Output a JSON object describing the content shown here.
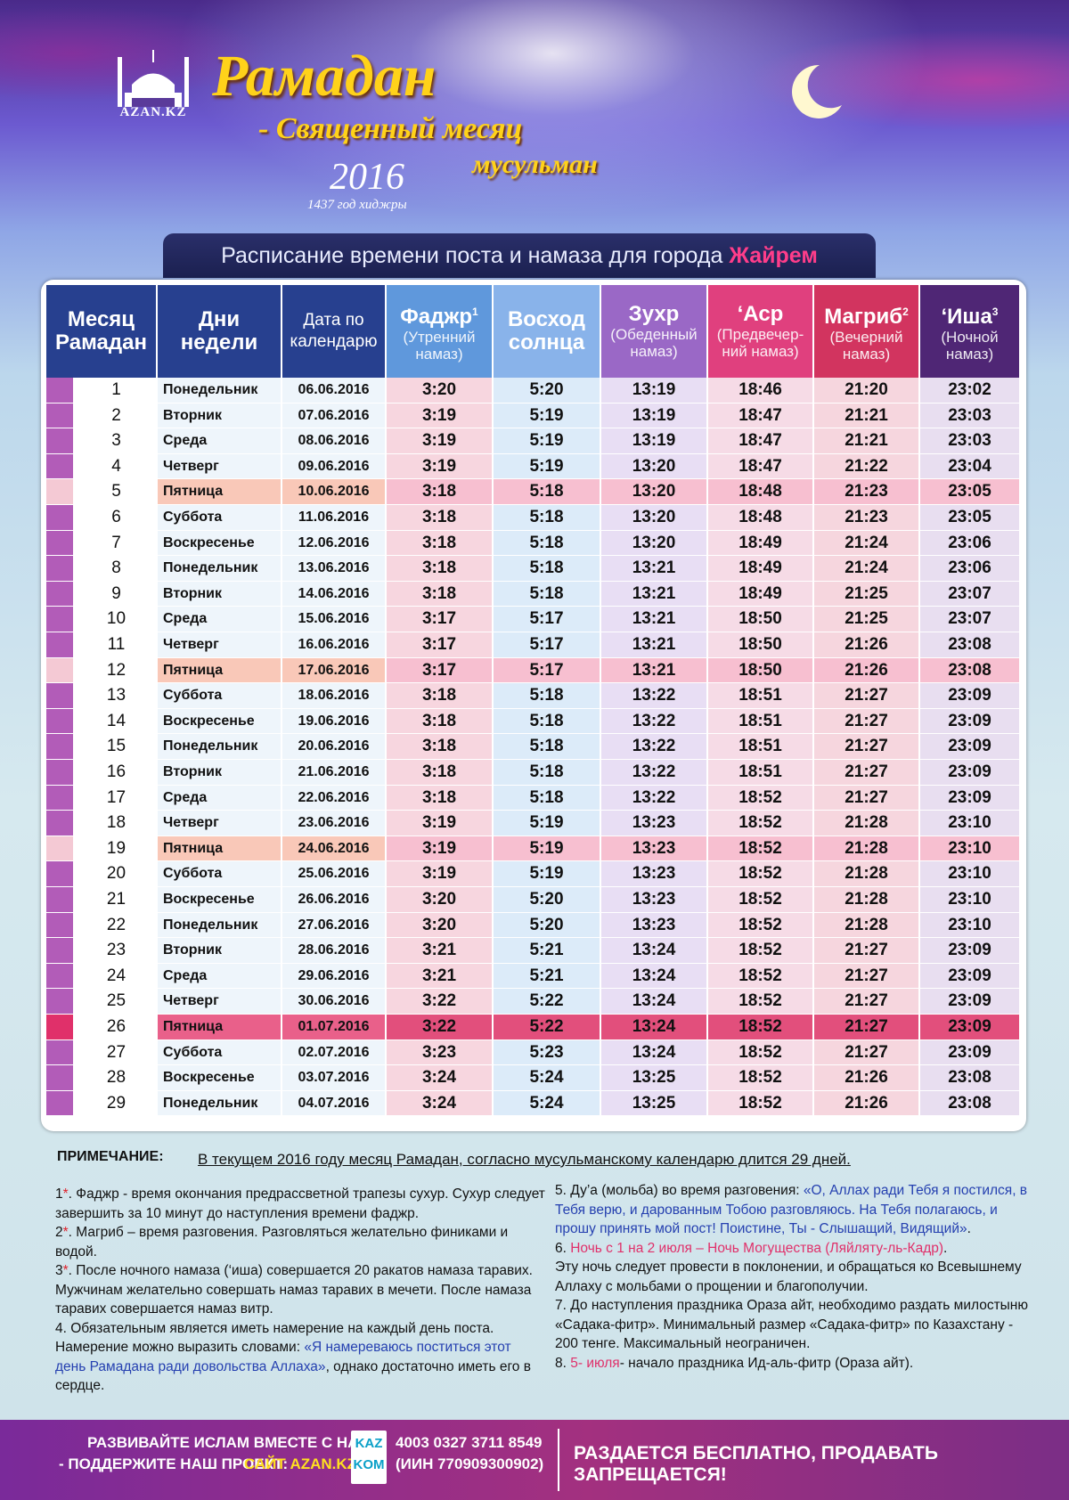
{
  "header": {
    "logo": "AZAN.KZ",
    "title": "Рамадан",
    "subtitle": [
      "- Священный месяц",
      "мусульман"
    ],
    "year": "2016",
    "hijri": "1437 год хиджры"
  },
  "banner": {
    "text": "Расписание времени поста и намаза  для города ",
    "city": "Жайрем"
  },
  "table": {
    "columns": [
      {
        "title": "Месяц Рамадан"
      },
      {
        "title": "Дни недели"
      },
      {
        "title": "Дата по календарю"
      },
      {
        "title": "Фаджр",
        "sup": "1",
        "sub": "(Утренний намаз)"
      },
      {
        "title": "Восход солнца"
      },
      {
        "title": "Зухр",
        "sub": "(Обеденный намаз)"
      },
      {
        "title": "‘Аср",
        "sub": "(Предвечер-ний намаз)"
      },
      {
        "title": "Магриб",
        "sup": "2",
        "sub": "(Вечерний намаз)"
      },
      {
        "title": "‘Иша",
        "sup": "3",
        "sub": "(Ночной намаз)"
      }
    ],
    "rows": [
      [
        "1",
        "Понедельник",
        "06.06.2016",
        "3:20",
        "5:20",
        "13:19",
        "18:46",
        "21:20",
        "23:02"
      ],
      [
        "2",
        "Вторник",
        "07.06.2016",
        "3:19",
        "5:19",
        "13:19",
        "18:47",
        "21:21",
        "23:03"
      ],
      [
        "3",
        "Среда",
        "08.06.2016",
        "3:19",
        "5:19",
        "13:19",
        "18:47",
        "21:21",
        "23:03"
      ],
      [
        "4",
        "Четверг",
        "09.06.2016",
        "3:19",
        "5:19",
        "13:20",
        "18:47",
        "21:22",
        "23:04"
      ],
      [
        "5",
        "Пятница",
        "10.06.2016",
        "3:18",
        "5:18",
        "13:20",
        "18:48",
        "21:23",
        "23:05"
      ],
      [
        "6",
        "Суббота",
        "11.06.2016",
        "3:18",
        "5:18",
        "13:20",
        "18:48",
        "21:23",
        "23:05"
      ],
      [
        "7",
        "Воскресенье",
        "12.06.2016",
        "3:18",
        "5:18",
        "13:20",
        "18:49",
        "21:24",
        "23:06"
      ],
      [
        "8",
        "Понедельник",
        "13.06.2016",
        "3:18",
        "5:18",
        "13:21",
        "18:49",
        "21:24",
        "23:06"
      ],
      [
        "9",
        "Вторник",
        "14.06.2016",
        "3:18",
        "5:18",
        "13:21",
        "18:49",
        "21:25",
        "23:07"
      ],
      [
        "10",
        "Среда",
        "15.06.2016",
        "3:17",
        "5:17",
        "13:21",
        "18:50",
        "21:25",
        "23:07"
      ],
      [
        "11",
        "Четверг",
        "16.06.2016",
        "3:17",
        "5:17",
        "13:21",
        "18:50",
        "21:26",
        "23:08"
      ],
      [
        "12",
        "Пятница",
        "17.06.2016",
        "3:17",
        "5:17",
        "13:21",
        "18:50",
        "21:26",
        "23:08"
      ],
      [
        "13",
        "Суббота",
        "18.06.2016",
        "3:18",
        "5:18",
        "13:22",
        "18:51",
        "21:27",
        "23:09"
      ],
      [
        "14",
        "Воскресенье",
        "19.06.2016",
        "3:18",
        "5:18",
        "13:22",
        "18:51",
        "21:27",
        "23:09"
      ],
      [
        "15",
        "Понедельник",
        "20.06.2016",
        "3:18",
        "5:18",
        "13:22",
        "18:51",
        "21:27",
        "23:09"
      ],
      [
        "16",
        "Вторник",
        "21.06.2016",
        "3:18",
        "5:18",
        "13:22",
        "18:51",
        "21:27",
        "23:09"
      ],
      [
        "17",
        "Среда",
        "22.06.2016",
        "3:18",
        "5:18",
        "13:22",
        "18:52",
        "21:27",
        "23:09"
      ],
      [
        "18",
        "Четверг",
        "23.06.2016",
        "3:19",
        "5:19",
        "13:23",
        "18:52",
        "21:28",
        "23:10"
      ],
      [
        "19",
        "Пятница",
        "24.06.2016",
        "3:19",
        "5:19",
        "13:23",
        "18:52",
        "21:28",
        "23:10"
      ],
      [
        "20",
        "Суббота",
        "25.06.2016",
        "3:19",
        "5:19",
        "13:23",
        "18:52",
        "21:28",
        "23:10"
      ],
      [
        "21",
        "Воскресенье",
        "26.06.2016",
        "3:20",
        "5:20",
        "13:23",
        "18:52",
        "21:28",
        "23:10"
      ],
      [
        "22",
        "Понедельник",
        "27.06.2016",
        "3:20",
        "5:20",
        "13:23",
        "18:52",
        "21:28",
        "23:10"
      ],
      [
        "23",
        "Вторник",
        "28.06.2016",
        "3:21",
        "5:21",
        "13:24",
        "18:52",
        "21:27",
        "23:09"
      ],
      [
        "24",
        "Среда",
        "29.06.2016",
        "3:21",
        "5:21",
        "13:24",
        "18:52",
        "21:27",
        "23:09"
      ],
      [
        "25",
        "Четверг",
        "30.06.2016",
        "3:22",
        "5:22",
        "13:24",
        "18:52",
        "21:27",
        "23:09"
      ],
      [
        "26",
        "Пятница",
        "01.07.2016",
        "3:22",
        "5:22",
        "13:24",
        "18:52",
        "21:27",
        "23:09"
      ],
      [
        "27",
        "Суббота",
        "02.07.2016",
        "3:23",
        "5:23",
        "13:24",
        "18:52",
        "21:27",
        "23:09"
      ],
      [
        "28",
        "Воскресенье",
        "03.07.2016",
        "3:24",
        "5:24",
        "13:25",
        "18:52",
        "21:26",
        "23:08"
      ],
      [
        "29",
        "Понедельник",
        "04.07.2016",
        "3:24",
        "5:24",
        "13:25",
        "18:52",
        "21:26",
        "23:08"
      ]
    ]
  },
  "notes": {
    "label": "ПРИМЕЧАНИЕ:",
    "headline": "В текущем 2016 году месяц Рамадан, согласно мусульманскому календарю длится 29 дней.",
    "left": [
      [
        "1",
        "*",
        ". Фаджр - время окончания предрассветной трапезы сухур. Сухур следует завершить за 10 минут до наступления времени фаджр."
      ],
      [
        "2",
        "*",
        ". Магриб – время разговения. Разговляться желательно финиками и водой."
      ],
      [
        "3",
        "*",
        ". После ночного намаза (‘иша) совершается 20 ракатов намаза таравих. Мужчинам желательно совершать намаз таравих в мечети. После намаза таравих совершается намаз витр."
      ],
      [
        "4. Обязательным является иметь намерение на каждый день поста. Намерение можно выразить словами: ",
        "«Я намереваюсь поститься этот день Рамадана ради довольства Аллаха»",
        ", однако достаточно иметь его в сердце."
      ]
    ],
    "right": [
      [
        "5. Ду’а (мольба) во время разговения: ",
        "«О, Аллах ради Тебя я постился, в Тебя верю,  и дарованным Тобою разговляюсь. На Тебя полагаюсь, и прошу принять мой пост! Поистине, Ты - Слышащий, Видящий»",
        "."
      ],
      [
        "6. ",
        "Ночь с 1 на 2 июля – Ночь Могущества (Ляйляту-ль-Кадр)",
        ".\nЭту ночь следует провести в поклонении, и обращаться ко Всевышнему Аллаху с мольбами о прощении и благополучии."
      ],
      [
        "7. До наступления праздника Ораза айт, необходимо раздать милостыню «Садака-фитр». Минимальный размер «Садака-фитр» по Казахстану - 200 тенге. Максимальный неограничен."
      ],
      [
        "8. ",
        "5- июля",
        "- начало праздника Ид-аль-фитр (Ораза айт)."
      ]
    ]
  },
  "footer": {
    "slogan": "РАЗВИВАЙТЕ ИСЛАМ ВМЕСТЕ С НАМИ",
    "support": "- ПОДДЕРЖИТЕ НАШ ПРОЕКТ:",
    "site": "САЙТ AZAN.KZ",
    "bank": [
      "KAZ",
      "KOM"
    ],
    "account": "4003 0327 3711 8549",
    "iin": "(ИИН 770909300902)",
    "notice": "РАЗДАЕТСЯ БЕСПЛАТНО, ПРОДАВАТЬ ЗАПРЕЩАЕТСЯ!"
  }
}
